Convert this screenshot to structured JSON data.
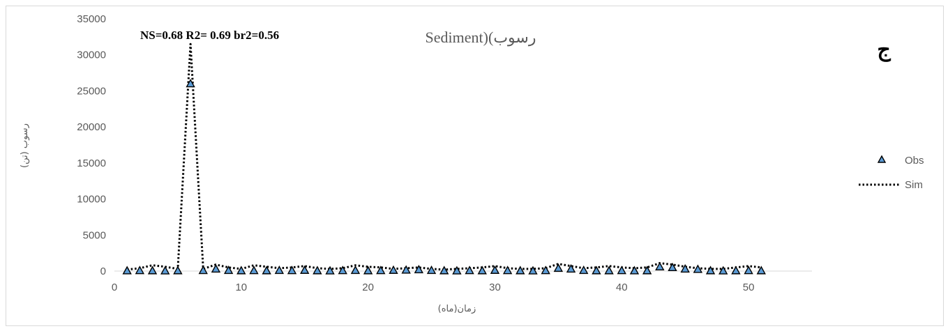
{
  "chart_data": {
    "type": "line",
    "title": "Sediment)(رسوب",
    "stats": "NS=0.68  R2= 0.69  br2=0.56",
    "panel_label": "ج",
    "xlabel": "زمان(ماه)",
    "ylabel": "رسوب (تن)",
    "xlim": [
      0,
      55
    ],
    "ylim": [
      0,
      35000
    ],
    "xticks": [
      "0",
      "10",
      "20",
      "30",
      "40",
      "50"
    ],
    "yticks": [
      "0",
      "5000",
      "10000",
      "15000",
      "20000",
      "25000",
      "30000",
      "35000"
    ],
    "grid": false,
    "legend_position": "right",
    "x": [
      1,
      2,
      3,
      4,
      5,
      6,
      7,
      8,
      9,
      10,
      11,
      12,
      13,
      14,
      15,
      16,
      17,
      18,
      19,
      20,
      21,
      22,
      23,
      24,
      25,
      26,
      27,
      28,
      29,
      30,
      31,
      32,
      33,
      34,
      35,
      36,
      37,
      38,
      39,
      40,
      41,
      42,
      43,
      44,
      45,
      46,
      47,
      48,
      49,
      50,
      51
    ],
    "series": [
      {
        "name": "Obs",
        "marker": "triangle",
        "color": "#5b9bd5",
        "values": [
          50,
          80,
          60,
          40,
          60,
          26000,
          90,
          300,
          100,
          60,
          80,
          60,
          100,
          80,
          120,
          60,
          40,
          80,
          100,
          60,
          80,
          120,
          150,
          200,
          100,
          60,
          40,
          80,
          60,
          120,
          80,
          60,
          40,
          80,
          400,
          300,
          100,
          60,
          60,
          80,
          50,
          60,
          600,
          500,
          300,
          250,
          60,
          40,
          60,
          80,
          60
        ]
      },
      {
        "name": "Sim",
        "marker": "dotted-line",
        "color": "#000000",
        "values": [
          200,
          400,
          800,
          600,
          300,
          31500,
          300,
          900,
          500,
          300,
          800,
          600,
          400,
          500,
          700,
          400,
          300,
          400,
          800,
          600,
          500,
          300,
          400,
          500,
          300,
          200,
          300,
          400,
          500,
          700,
          400,
          300,
          300,
          400,
          1000,
          700,
          400,
          500,
          700,
          500,
          400,
          500,
          1100,
          900,
          600,
          400,
          300,
          300,
          500,
          700,
          500
        ]
      }
    ]
  }
}
